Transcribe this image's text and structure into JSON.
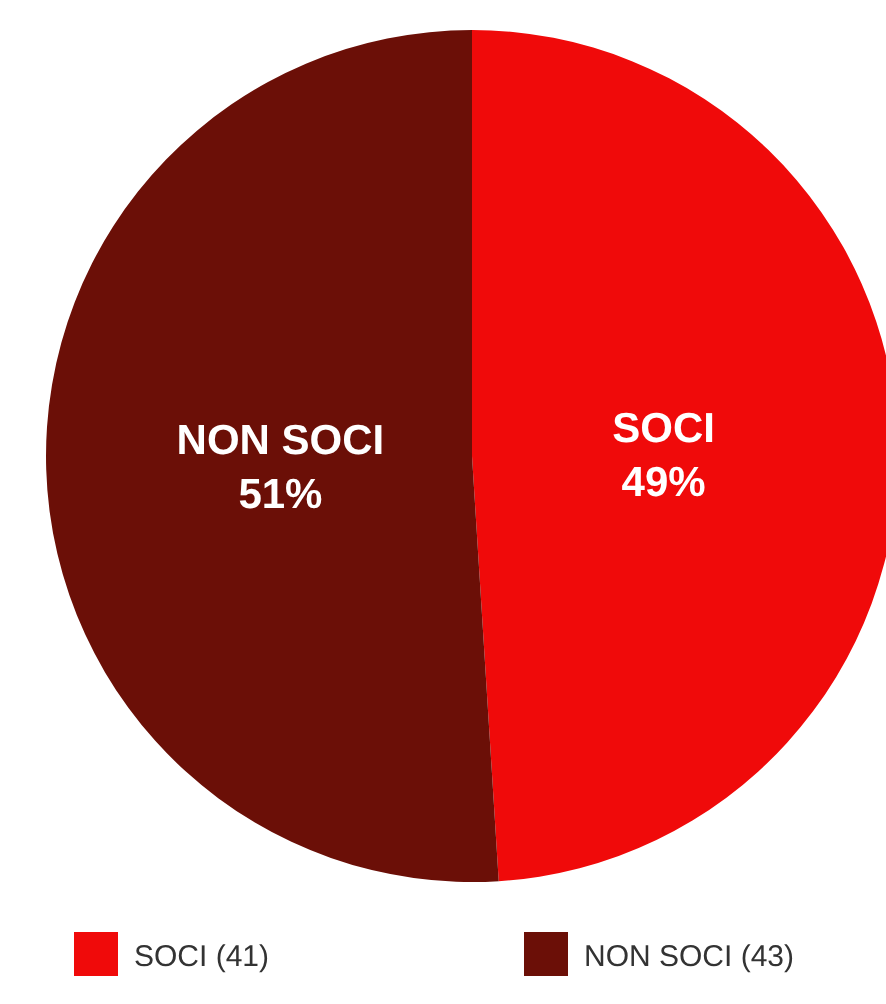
{
  "chart_data": {
    "type": "pie",
    "categories": [
      "SOCI (41)",
      "NON SOCI (43)"
    ],
    "values": [
      49,
      51
    ],
    "colors": [
      "#f00a0a",
      "#6b0f07"
    ],
    "value_labels": [
      "SOCI\n49%",
      "NON SOCI\n51%"
    ],
    "legend": "bottom"
  }
}
